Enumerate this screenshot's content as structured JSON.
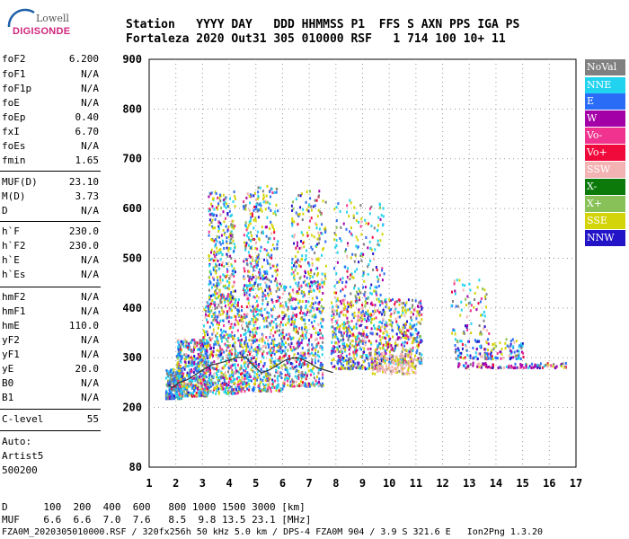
{
  "logo": {
    "top": "Lowell",
    "main": "DIGISONDE"
  },
  "header": {
    "row1": "Station   YYYY DAY   DDD HHMMSS P1  FFS S AXN PPS IGA PS",
    "row2": "Fortaleza 2020 Out31 305 010000 RSF   1 714 100 10+ 11"
  },
  "params": [
    {
      "name": "foF2",
      "value": "6.200"
    },
    {
      "name": "foF1",
      "value": "N/A"
    },
    {
      "name": "foF1p",
      "value": "N/A"
    },
    {
      "name": "foE",
      "value": "N/A"
    },
    {
      "name": "foEp",
      "value": "0.40"
    },
    {
      "name": "fxI",
      "value": "6.70"
    },
    {
      "name": "foEs",
      "value": "N/A"
    },
    {
      "name": "fmin",
      "value": "1.65"
    },
    {
      "name": "MUF(D)",
      "value": "23.10"
    },
    {
      "name": "M(D)",
      "value": "3.73"
    },
    {
      "name": "D",
      "value": "N/A"
    },
    {
      "name": "h`F",
      "value": "230.0"
    },
    {
      "name": "h`F2",
      "value": "230.0"
    },
    {
      "name": "h`E",
      "value": "N/A"
    },
    {
      "name": "h`Es",
      "value": "N/A"
    },
    {
      "name": "hmF2",
      "value": "N/A"
    },
    {
      "name": "hmF1",
      "value": "N/A"
    },
    {
      "name": "hmE",
      "value": "110.0"
    },
    {
      "name": "yF2",
      "value": "N/A"
    },
    {
      "name": "yF1",
      "value": "N/A"
    },
    {
      "name": "yE",
      "value": "20.0"
    },
    {
      "name": "B0",
      "value": "N/A"
    },
    {
      "name": "B1",
      "value": "N/A"
    },
    {
      "name": "C-level",
      "value": "55"
    }
  ],
  "auto": {
    "line1": "Auto:",
    "line2": "Artist5",
    "line3": "500200"
  },
  "legend": [
    {
      "label": "NoVal",
      "color": "#808080"
    },
    {
      "label": "NNE",
      "color": "#22d3f0"
    },
    {
      "label": "E",
      "color": "#2a6cf5"
    },
    {
      "label": "W",
      "color": "#a400a8"
    },
    {
      "label": "Vo-",
      "color": "#f0338e"
    },
    {
      "label": "Vo+",
      "color": "#f00a3c"
    },
    {
      "label": "SSW",
      "color": "#f4b3b3"
    },
    {
      "label": "X-",
      "color": "#0b7a0b"
    },
    {
      "label": "X+",
      "color": "#88c158"
    },
    {
      "label": "SSE",
      "color": "#d4d40a"
    },
    {
      "label": "NNW",
      "color": "#2414c8"
    }
  ],
  "footer": {
    "d_row": "D      100  200  400  600   800 1000 1500 3000 [km]",
    "muf_row": "MUF    6.6  6.6  7.0  7.6   8.5  9.8 13.5 23.1 [MHz]",
    "file_row": "FZA0M_2020305010000.RSF / 320fx256h 50 kHz 5.0 km / DPS-4 FZA0M 904 / 3.9 S 321.6 E   Ion2Png 1.3.20"
  },
  "chart_data": {
    "type": "scatter",
    "xlim": [
      1,
      17
    ],
    "ylim": [
      80,
      900
    ],
    "x_ticks": [
      1,
      2,
      3,
      4,
      5,
      6,
      7,
      8,
      9,
      10,
      11,
      12,
      13,
      14,
      15,
      16,
      17
    ],
    "y_ticks": [
      80,
      200,
      300,
      400,
      500,
      600,
      700,
      800,
      900
    ],
    "trace": {
      "x": [
        1.7,
        1.9,
        2.1,
        2.4,
        2.7,
        3.0,
        3.3,
        3.7,
        4.0,
        4.3,
        4.6,
        4.9,
        5.2,
        5.5,
        5.8,
        6.1,
        6.4,
        6.7,
        7.0,
        7.3,
        7.6,
        7.9
      ],
      "y": [
        245,
        240,
        250,
        255,
        265,
        275,
        285,
        290,
        295,
        300,
        302,
        285,
        270,
        275,
        285,
        295,
        300,
        298,
        290,
        280,
        275,
        270
      ]
    },
    "clusters": [
      {
        "x": [
          1.6,
          2.2
        ],
        "y": [
          220,
          280
        ],
        "weights": [
          6,
          8,
          9,
          1,
          1,
          1,
          0,
          0,
          2,
          1,
          1
        ],
        "n": 260
      },
      {
        "x": [
          2.0,
          3.2
        ],
        "y": [
          225,
          340
        ],
        "weights": [
          4,
          8,
          8,
          2,
          3,
          2,
          2,
          0,
          1,
          6,
          1
        ],
        "n": 520
      },
      {
        "x": [
          3.0,
          4.5
        ],
        "y": [
          230,
          420
        ],
        "weights": [
          3,
          7,
          6,
          2,
          3,
          2,
          2,
          0,
          1,
          6,
          1
        ],
        "n": 560
      },
      {
        "x": [
          3.2,
          4.2
        ],
        "y": [
          420,
          640
        ],
        "weights": [
          2,
          5,
          4,
          1,
          1,
          1,
          1,
          0,
          1,
          6,
          1
        ],
        "n": 300
      },
      {
        "x": [
          4.5,
          6.0
        ],
        "y": [
          235,
          460
        ],
        "weights": [
          3,
          7,
          7,
          2,
          3,
          2,
          2,
          0,
          1,
          6,
          1
        ],
        "n": 560
      },
      {
        "x": [
          4.5,
          5.8
        ],
        "y": [
          460,
          650
        ],
        "weights": [
          2,
          4,
          4,
          1,
          1,
          1,
          1,
          0,
          1,
          6,
          1
        ],
        "n": 240
      },
      {
        "x": [
          6.0,
          7.5
        ],
        "y": [
          245,
          450
        ],
        "weights": [
          3,
          6,
          6,
          2,
          3,
          2,
          2,
          0,
          1,
          6,
          1
        ],
        "n": 480
      },
      {
        "x": [
          6.3,
          7.6
        ],
        "y": [
          450,
          640
        ],
        "weights": [
          2,
          4,
          4,
          1,
          1,
          1,
          1,
          0,
          1,
          6,
          1
        ],
        "n": 180
      },
      {
        "x": [
          7.8,
          9.8
        ],
        "y": [
          280,
          420
        ],
        "weights": [
          3,
          5,
          5,
          3,
          3,
          2,
          3,
          0,
          1,
          8,
          2
        ],
        "n": 520
      },
      {
        "x": [
          7.9,
          9.8
        ],
        "y": [
          420,
          620
        ],
        "weights": [
          2,
          6,
          4,
          1,
          1,
          1,
          1,
          0,
          1,
          5,
          1
        ],
        "n": 180
      },
      {
        "x": [
          9.8,
          11.2
        ],
        "y": [
          290,
          420
        ],
        "weights": [
          2,
          4,
          4,
          3,
          3,
          2,
          3,
          0,
          1,
          8,
          2
        ],
        "n": 320
      },
      {
        "x": [
          9.3,
          11.0
        ],
        "y": [
          270,
          310
        ],
        "weights": [
          1,
          0,
          0,
          0,
          0,
          0,
          8,
          0,
          0,
          3,
          0
        ],
        "n": 140
      },
      {
        "x": [
          12.3,
          13.8
        ],
        "y": [
          350,
          460
        ],
        "weights": [
          3,
          6,
          3,
          2,
          2,
          1,
          2,
          0,
          1,
          4,
          1
        ],
        "n": 70
      },
      {
        "x": [
          12.4,
          15.0
        ],
        "y": [
          300,
          340
        ],
        "weights": [
          1,
          4,
          8,
          1,
          1,
          1,
          1,
          0,
          1,
          2,
          3
        ],
        "n": 150
      },
      {
        "x": [
          12.5,
          16.6
        ],
        "y": [
          282,
          292
        ],
        "weights": [
          1,
          1,
          1,
          6,
          1,
          1,
          1,
          0,
          0,
          1,
          1
        ],
        "n": 110
      }
    ]
  }
}
